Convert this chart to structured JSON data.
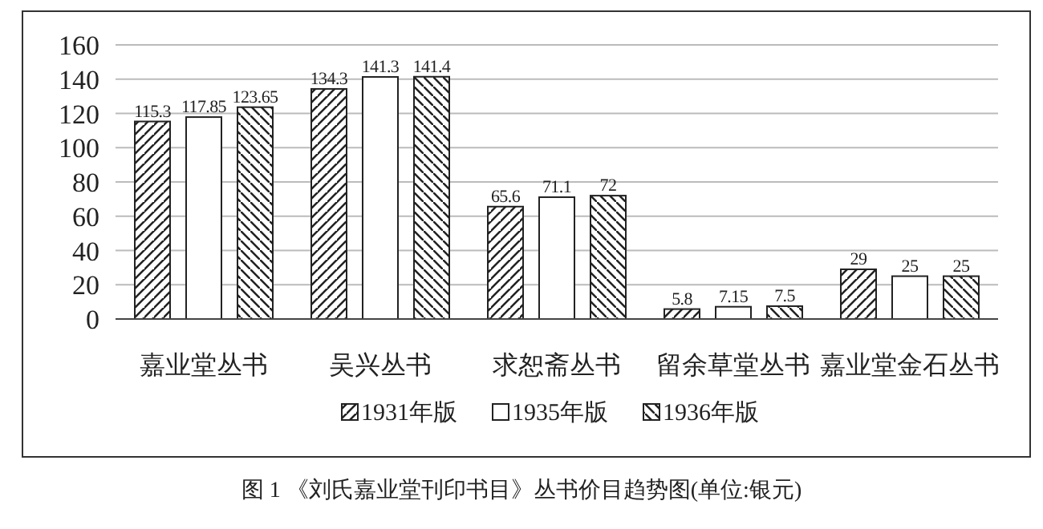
{
  "chart_data": {
    "type": "bar",
    "categories": [
      "嘉业堂丛书",
      "吴兴丛书",
      "求恕斋丛书",
      "留余草堂丛书",
      "嘉业堂金石丛书"
    ],
    "series": [
      {
        "name": "1931年版",
        "color": "#222222",
        "values": [
          115.3,
          134.3,
          65.6,
          5.8,
          29
        ]
      },
      {
        "name": "1935年版",
        "color": "#ffffff",
        "values": [
          117.85,
          141.3,
          71.1,
          7.15,
          25
        ]
      },
      {
        "name": "1936年版",
        "color": "#222222",
        "values": [
          123.65,
          141.4,
          72,
          7.5,
          25
        ]
      }
    ],
    "ylim": [
      0,
      160
    ],
    "yticks": [
      0,
      20,
      40,
      60,
      80,
      100,
      120,
      140,
      160
    ],
    "grid": "y",
    "legend": "bottom",
    "data_labels": true,
    "annotations": [
      "图 1 《刘氏嘉业堂刊印书目》丛书价目趋势图(单位:银元)"
    ]
  }
}
